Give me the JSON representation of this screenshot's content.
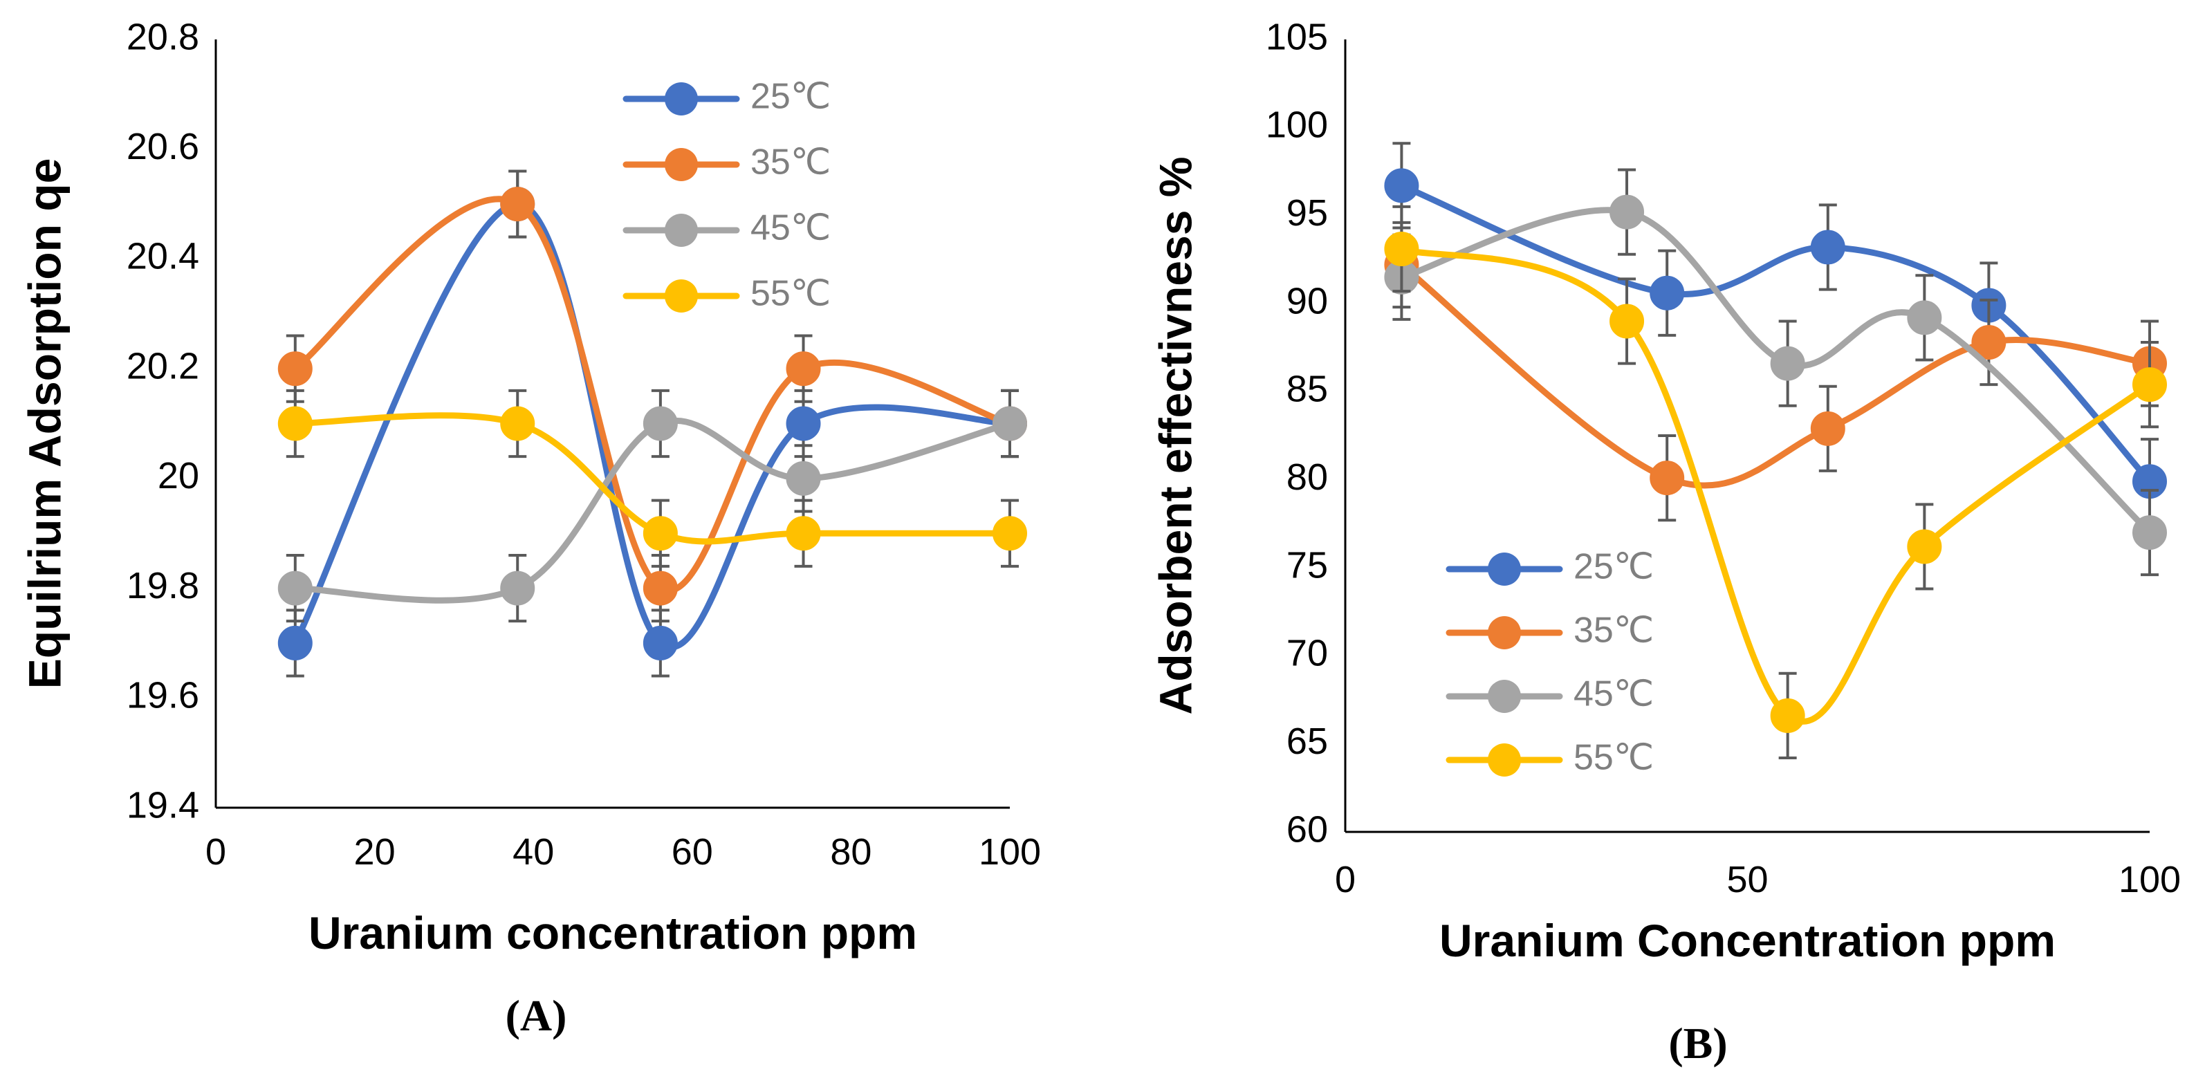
{
  "chart_data": [
    {
      "type": "line",
      "panel_label": "(A)",
      "title": "",
      "xlabel": "Uranium concentration ppm",
      "ylabel": "Equilrium Adsorption qe",
      "xlim": [
        0,
        100
      ],
      "ylim": [
        19.4,
        20.8
      ],
      "xticks": [
        0,
        20,
        40,
        60,
        80,
        100
      ],
      "yticks": [
        19.4,
        19.6,
        19.8,
        20,
        20.2,
        20.4,
        20.6,
        20.8
      ],
      "ytick_labels": [
        "19.4",
        "19.6",
        "19.8",
        "20",
        "20.2",
        "20.4",
        "20.6",
        "20.8"
      ],
      "grid": false,
      "smooth": true,
      "error_bar": 0.06,
      "legend_position": "top-right",
      "series": [
        {
          "name": "25℃",
          "color": "#4472c4",
          "x": [
            10,
            38,
            56,
            74,
            100
          ],
          "y": [
            19.7,
            20.5,
            19.7,
            20.1,
            20.1
          ]
        },
        {
          "name": "35℃",
          "color": "#ed7d31",
          "x": [
            10,
            38,
            56,
            74,
            100
          ],
          "y": [
            20.2,
            20.5,
            19.8,
            20.2,
            20.1
          ]
        },
        {
          "name": "45℃",
          "color": "#a5a5a5",
          "x": [
            10,
            38,
            56,
            74,
            100
          ],
          "y": [
            19.8,
            19.8,
            20.1,
            20.0,
            20.1
          ]
        },
        {
          "name": "55℃",
          "color": "#ffc000",
          "x": [
            10,
            38,
            56,
            74,
            100
          ],
          "y": [
            20.1,
            20.1,
            19.9,
            19.9,
            19.9
          ]
        }
      ]
    },
    {
      "type": "line",
      "panel_label": "(B)",
      "title": "",
      "xlabel": "Uranium Concentration ppm",
      "ylabel": "Adsorbent effectivness %",
      "xlim": [
        0,
        100
      ],
      "ylim": [
        60,
        105
      ],
      "xticks": [
        0,
        50,
        100
      ],
      "yticks": [
        60,
        65,
        70,
        75,
        80,
        85,
        90,
        95,
        100,
        105
      ],
      "ytick_labels": [
        "60",
        "65",
        "70",
        "75",
        "80",
        "85",
        "90",
        "95",
        "100",
        "105"
      ],
      "grid": false,
      "smooth": true,
      "error_bar": 2.4,
      "legend_position": "bottom-left",
      "series": [
        {
          "name": "25℃",
          "color": "#4472c4",
          "x": [
            7,
            40,
            60,
            80,
            100
          ],
          "y": [
            96.7,
            90.6,
            93.2,
            89.9,
            79.9
          ]
        },
        {
          "name": "35℃",
          "color": "#ed7d31",
          "x": [
            7,
            40,
            60,
            80,
            100
          ],
          "y": [
            92.2,
            80.1,
            82.9,
            87.8,
            86.6
          ]
        },
        {
          "name": "45℃",
          "color": "#a5a5a5",
          "x": [
            7,
            35,
            55,
            72,
            100
          ],
          "y": [
            91.5,
            95.2,
            86.6,
            89.2,
            77.0
          ]
        },
        {
          "name": "55℃",
          "color": "#ffc000",
          "x": [
            7,
            35,
            55,
            72,
            100
          ],
          "y": [
            93.1,
            89.0,
            66.6,
            76.2,
            85.4
          ]
        }
      ]
    }
  ]
}
